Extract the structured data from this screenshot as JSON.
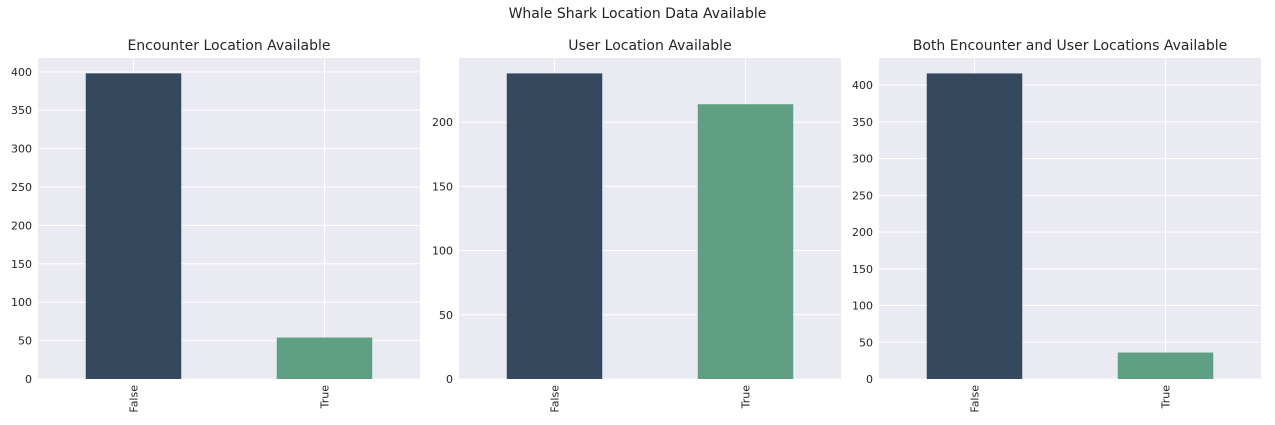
{
  "figure": {
    "title": "Whale Shark Location Data Available"
  },
  "colors": {
    "background_plot": "#eaeaf2",
    "grid": "#ffffff",
    "false_bar": "#34495e",
    "true_bar": "#5f9f84"
  },
  "chart_data": [
    {
      "type": "bar",
      "title": "Encounter Location Available",
      "categories": [
        "False",
        "True"
      ],
      "values": [
        398,
        54
      ],
      "xlabel": "",
      "ylabel": "",
      "ylim": [
        0,
        418
      ],
      "yticks": [
        0,
        50,
        100,
        150,
        200,
        250,
        300,
        350,
        400
      ],
      "grid": true
    },
    {
      "type": "bar",
      "title": "User Location Available",
      "categories": [
        "False",
        "True"
      ],
      "values": [
        238,
        214
      ],
      "xlabel": "",
      "ylabel": "",
      "ylim": [
        0,
        250
      ],
      "yticks": [
        0,
        50,
        100,
        150,
        200
      ],
      "grid": true
    },
    {
      "type": "bar",
      "title": "Both Encounter and User Locations Available",
      "categories": [
        "False",
        "True"
      ],
      "values": [
        416,
        36
      ],
      "xlabel": "",
      "ylabel": "",
      "ylim": [
        0,
        437
      ],
      "yticks": [
        0,
        50,
        100,
        150,
        200,
        250,
        300,
        350,
        400
      ],
      "grid": true
    }
  ]
}
